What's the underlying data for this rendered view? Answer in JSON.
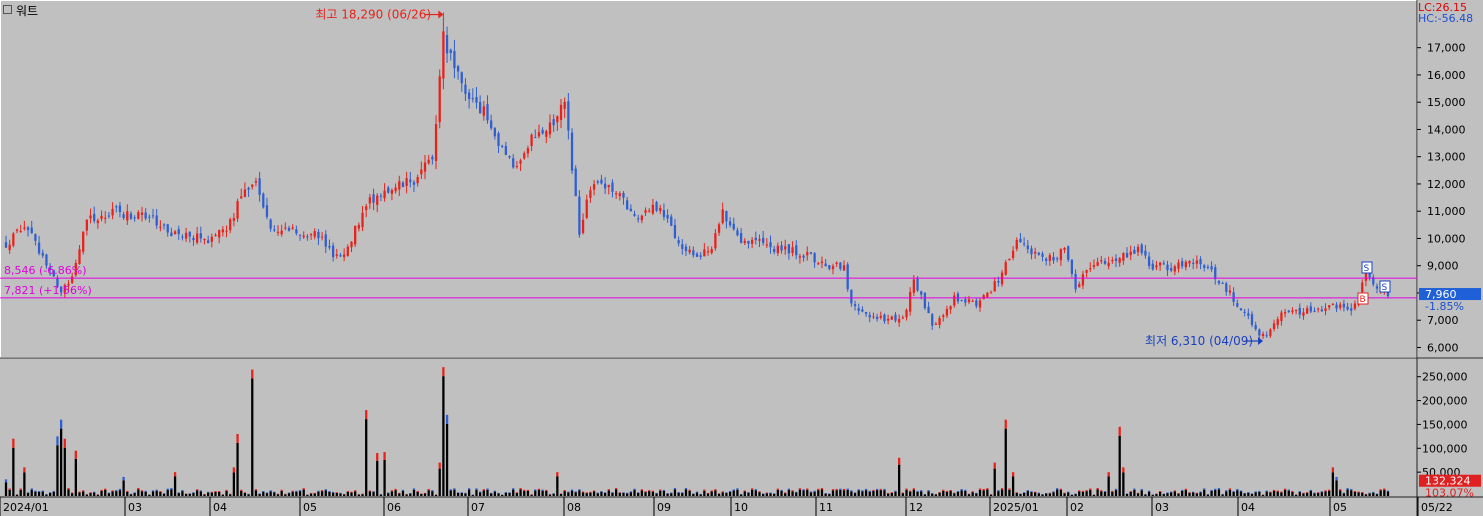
{
  "header": {
    "icon": "square-icon",
    "title": "워트"
  },
  "indicators": {
    "lc": "LC:26.15",
    "hc": "HC:-56.48"
  },
  "price_tag": {
    "value": "7,960",
    "change": "-1.85%"
  },
  "volume_tag": {
    "value": "132,324",
    "pct": "103.07%"
  },
  "lines": {
    "upper_label": "8,546 (-6.86%)",
    "lower_label": "7,821 (+1.56%)",
    "upper": 8546,
    "lower": 7821
  },
  "annotations": {
    "high": "최고 18,290 (06/26)",
    "low": "최저 6,310 (04/09)"
  },
  "colors": {
    "up": "#e8221a",
    "down": "#2f5fce",
    "line": "#e000e0",
    "bg": "#c0c0c0"
  },
  "chart_data": {
    "type": "candlestick",
    "x_ticks": [
      "2024/01",
      "03",
      "04",
      "05",
      "06",
      "07",
      "08",
      "09",
      "10",
      "11",
      "12",
      "2025/01",
      "02",
      "03",
      "04",
      "05",
      "05/22"
    ],
    "price_axis": {
      "ticks": [
        6000,
        7000,
        8000,
        9000,
        10000,
        11000,
        12000,
        13000,
        14000,
        15000,
        16000,
        17000
      ],
      "labels": [
        "6,000",
        "7,000",
        "8,000",
        "9,000",
        "10,000",
        "11,000",
        "12,000",
        "13,000",
        "14,000",
        "15,000",
        "16,000",
        "17,000"
      ],
      "range": [
        5650,
        18750
      ]
    },
    "volume_axis": {
      "ticks": [
        50000,
        100000,
        150000,
        200000,
        250000
      ],
      "labels": [
        "50,000",
        "100,000",
        "150,000",
        "200,000",
        "250,000"
      ],
      "range": [
        0,
        285000
      ]
    },
    "price_anchors": [
      [
        0,
        9800
      ],
      [
        5,
        10500
      ],
      [
        10,
        9300
      ],
      [
        15,
        8100
      ],
      [
        18,
        8600
      ],
      [
        22,
        10700
      ],
      [
        30,
        11000
      ],
      [
        40,
        10700
      ],
      [
        45,
        10200
      ],
      [
        55,
        10000
      ],
      [
        60,
        10400
      ],
      [
        65,
        11700
      ],
      [
        68,
        12000
      ],
      [
        72,
        10300
      ],
      [
        80,
        10200
      ],
      [
        85,
        10100
      ],
      [
        90,
        9300
      ],
      [
        93,
        9700
      ],
      [
        98,
        11300
      ],
      [
        105,
        11800
      ],
      [
        112,
        12200
      ],
      [
        116,
        13000
      ],
      [
        119,
        17200
      ],
      [
        124,
        15600
      ],
      [
        130,
        14600
      ],
      [
        138,
        12600
      ],
      [
        143,
        13700
      ],
      [
        148,
        14100
      ],
      [
        152,
        15000
      ],
      [
        156,
        10300
      ],
      [
        160,
        12200
      ],
      [
        166,
        11700
      ],
      [
        171,
        10700
      ],
      [
        178,
        11200
      ],
      [
        183,
        9900
      ],
      [
        188,
        9300
      ],
      [
        192,
        9600
      ],
      [
        195,
        11000
      ],
      [
        200,
        10000
      ],
      [
        205,
        9900
      ],
      [
        210,
        9600
      ],
      [
        216,
        9500
      ],
      [
        222,
        9100
      ],
      [
        228,
        8900
      ],
      [
        230,
        7500
      ],
      [
        236,
        7100
      ],
      [
        244,
        7000
      ],
      [
        247,
        8500
      ],
      [
        252,
        6800
      ],
      [
        258,
        7800
      ],
      [
        265,
        7600
      ],
      [
        270,
        8500
      ],
      [
        275,
        10000
      ],
      [
        282,
        9200
      ],
      [
        288,
        9500
      ],
      [
        291,
        8200
      ],
      [
        296,
        9100
      ],
      [
        303,
        9300
      ],
      [
        308,
        9600
      ],
      [
        312,
        9000
      ],
      [
        318,
        8900
      ],
      [
        322,
        9300
      ],
      [
        328,
        8800
      ],
      [
        334,
        7800
      ],
      [
        339,
        6900
      ],
      [
        342,
        6310
      ],
      [
        347,
        7200
      ],
      [
        356,
        7400
      ],
      [
        362,
        7500
      ],
      [
        366,
        7300
      ],
      [
        370,
        8600
      ],
      [
        373,
        8300
      ],
      [
        376,
        7960
      ]
    ],
    "volume_spikes": [
      [
        0,
        35000
      ],
      [
        2,
        120000
      ],
      [
        5,
        60000
      ],
      [
        14,
        125000
      ],
      [
        15,
        160000
      ],
      [
        16,
        120000
      ],
      [
        19,
        95000
      ],
      [
        32,
        40000
      ],
      [
        46,
        50000
      ],
      [
        62,
        60000
      ],
      [
        63,
        130000
      ],
      [
        67,
        265000
      ],
      [
        98,
        180000
      ],
      [
        101,
        90000
      ],
      [
        103,
        92000
      ],
      [
        118,
        70000
      ],
      [
        119,
        270000
      ],
      [
        120,
        170000
      ],
      [
        150,
        50000
      ],
      [
        243,
        80000
      ],
      [
        269,
        70000
      ],
      [
        272,
        160000
      ],
      [
        274,
        50000
      ],
      [
        300,
        50000
      ],
      [
        303,
        145000
      ],
      [
        304,
        60000
      ],
      [
        361,
        60000
      ],
      [
        362,
        40000
      ]
    ],
    "high": {
      "value": 18290,
      "date": "06/26"
    },
    "low": {
      "value": 6310,
      "date": "04/09"
    }
  }
}
